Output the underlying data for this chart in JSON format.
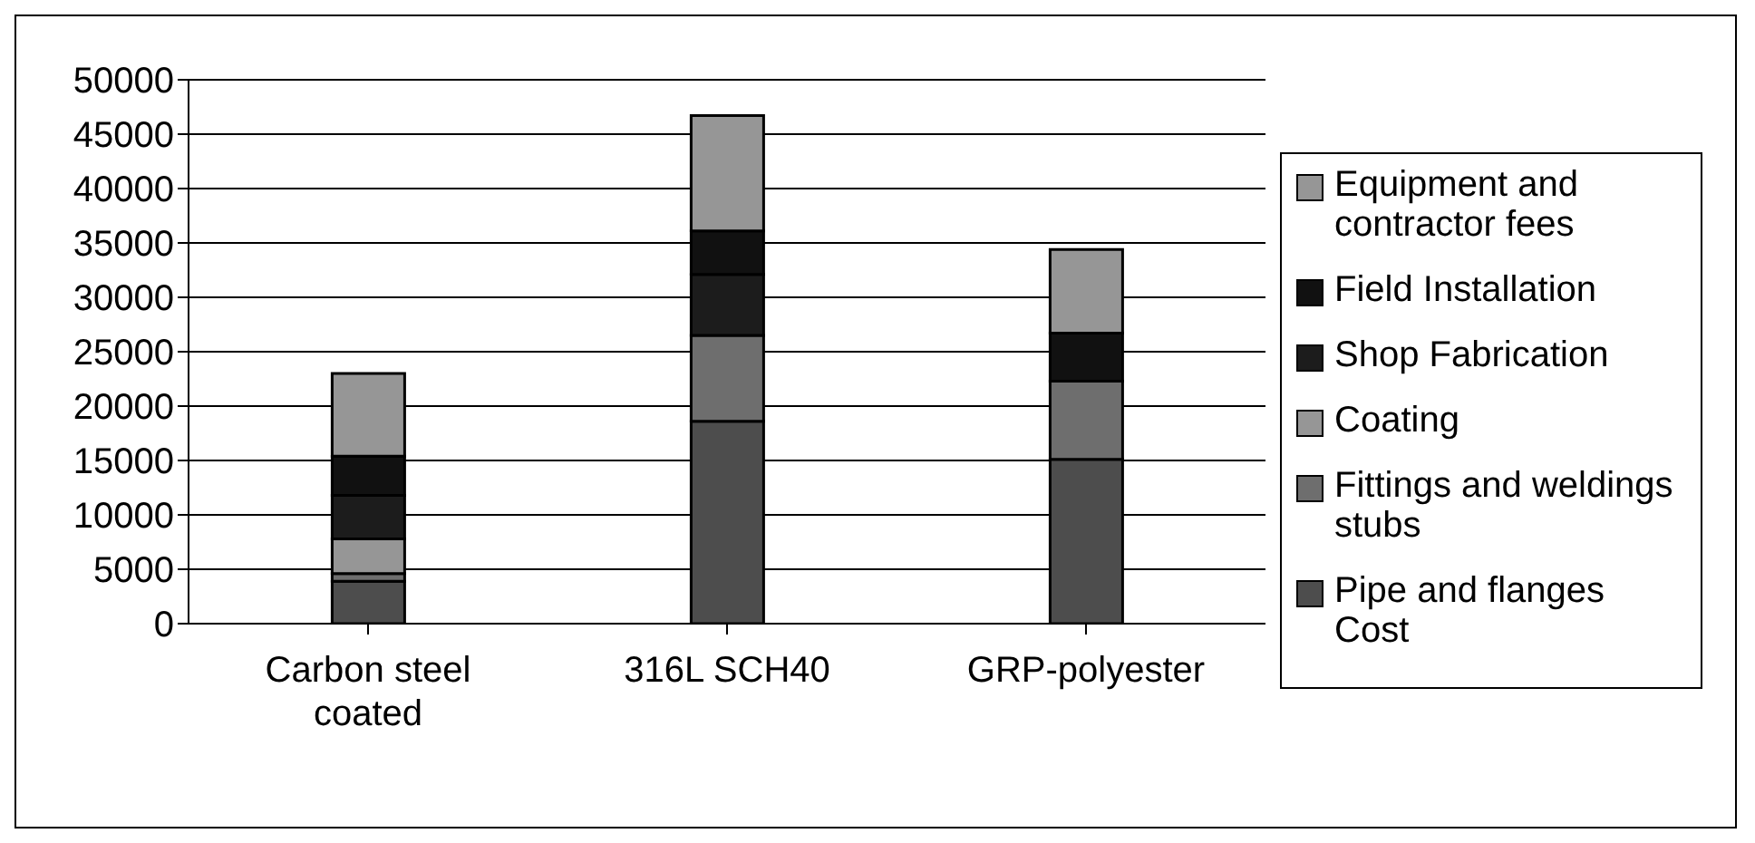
{
  "chart_data": {
    "type": "bar",
    "stacked": true,
    "categories": [
      "Carbon steel coated",
      "316L SCH40",
      "GRP-polyester"
    ],
    "series": [
      {
        "name": "Pipe and flanges Cost",
        "color": "#4d4d4d",
        "values": [
          3900,
          18600,
          15100
        ]
      },
      {
        "name": "Fittings and weldings stubs",
        "color": "#6e6e6e",
        "values": [
          700,
          7900,
          7200
        ]
      },
      {
        "name": "Coating",
        "color": "#969696",
        "values": [
          3200,
          0,
          0
        ]
      },
      {
        "name": "Shop Fabrication",
        "color": "#1c1c1c",
        "values": [
          4000,
          5600,
          0
        ]
      },
      {
        "name": "Field Installation",
        "color": "#111111",
        "values": [
          3600,
          4000,
          4400
        ]
      },
      {
        "name": "Equipment and contractor fees",
        "color": "#969696",
        "values": [
          7600,
          10600,
          7700
        ]
      }
    ],
    "ylim": [
      0,
      50000
    ],
    "yticks": [
      0,
      5000,
      10000,
      15000,
      20000,
      25000,
      30000,
      35000,
      40000,
      45000,
      50000
    ],
    "grid": "y",
    "legend": "right"
  }
}
